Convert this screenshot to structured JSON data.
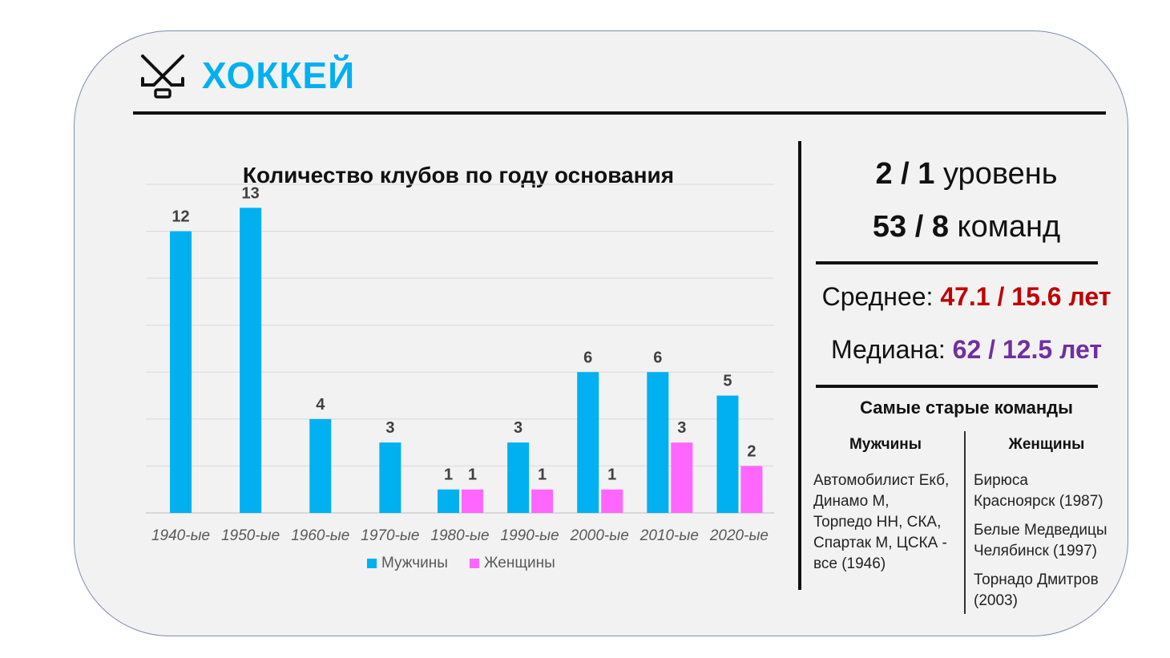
{
  "header": {
    "title": "ХОККЕЙ",
    "icon": "hockey-sticks-icon"
  },
  "chart_data": {
    "type": "bar",
    "title": "Количество клубов по году основания",
    "categories": [
      "1940-ые",
      "1950-ые",
      "1960-ые",
      "1970-ые",
      "1980-ые",
      "1990-ые",
      "2000-ые",
      "2010-ые",
      "2020-ые"
    ],
    "series": [
      {
        "name": "Мужчины",
        "color": "#00b0f0",
        "values": [
          12,
          13,
          4,
          3,
          1,
          3,
          6,
          6,
          5
        ]
      },
      {
        "name": "Женщины",
        "color": "#ff66ff",
        "values": [
          null,
          null,
          null,
          null,
          1,
          1,
          1,
          3,
          2
        ]
      }
    ],
    "ylim": [
      0,
      14
    ],
    "grid": true,
    "legend": "bottom",
    "data_labels": true
  },
  "stats": {
    "levels_value": "2 / 1",
    "levels_label": "уровень",
    "teams_value": "53 / 8",
    "teams_label": "команд",
    "mean_label": "Среднее:",
    "mean_value": "47.1 / 15.6 лет",
    "median_label": "Медиана:",
    "median_value": "62 / 12.5 лет",
    "mean_color": "#c00000",
    "median_color": "#7030a0"
  },
  "oldest": {
    "title": "Самые старые команды",
    "men_header": "Мужчины",
    "women_header": "Женщины",
    "men_lines": [
      "Автомобилист Екб,",
      "Динамо М,",
      "Торпедо НН, СКА,",
      "Спартак М, ЦСКА -",
      "все (1946)"
    ],
    "women_lines": [
      "Бирюса",
      "Красноярск (1987)",
      "Белые Медведицы",
      "Челябинск (1997)",
      "Торнадо Дмитров",
      "(2003)"
    ]
  }
}
